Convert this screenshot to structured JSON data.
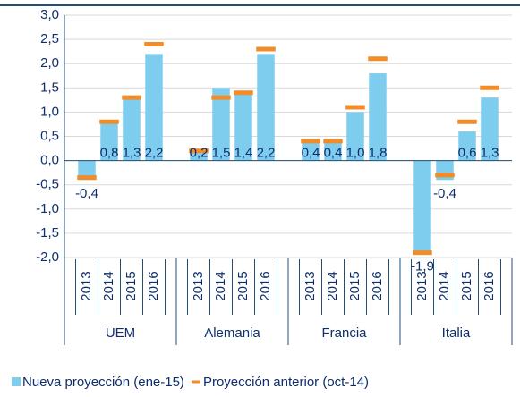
{
  "chart_data": {
    "type": "bar",
    "groups": [
      "UEM",
      "Alemania",
      "Francia",
      "Italia"
    ],
    "categories": [
      "2013",
      "2014",
      "2015",
      "2016",
      "2013",
      "2014",
      "2015",
      "2016",
      "2013",
      "2014",
      "2015",
      "2016",
      "2013",
      "2014",
      "2015",
      "2016"
    ],
    "series": [
      {
        "name": "Nueva proyección (ene-15)",
        "color": "#7fcdee",
        "values": [
          -0.4,
          0.8,
          1.3,
          2.2,
          0.2,
          1.5,
          1.4,
          2.2,
          0.4,
          0.4,
          1.0,
          1.8,
          -1.9,
          -0.4,
          0.6,
          1.3
        ],
        "value_labels": [
          "-0,4",
          "0,8",
          "1,3",
          "2,2",
          "0,2",
          "1,5",
          "1,4",
          "2,2",
          "0,4",
          "0,4",
          "1,0",
          "1,8",
          "-1,9",
          "-0,4",
          "0,6",
          "1,3"
        ]
      },
      {
        "name": "Proyección anterior (oct-14)",
        "color": "#f28c28",
        "values": [
          -0.35,
          0.8,
          1.3,
          2.4,
          0.2,
          1.3,
          1.4,
          2.3,
          0.4,
          0.4,
          1.1,
          2.1,
          -1.9,
          -0.3,
          0.8,
          1.5
        ]
      }
    ],
    "ylim": [
      -2.0,
      3.0
    ],
    "yticks": [
      {
        "value": -2.0,
        "label": "-2,0"
      },
      {
        "value": -1.5,
        "label": "-1,5"
      },
      {
        "value": -1.0,
        "label": "-1,0"
      },
      {
        "value": -0.5,
        "label": "-0,5"
      },
      {
        "value": 0.0,
        "label": "0,0"
      },
      {
        "value": 0.5,
        "label": "0,5"
      },
      {
        "value": 1.0,
        "label": "1,0"
      },
      {
        "value": 1.5,
        "label": "1,5"
      },
      {
        "value": 2.0,
        "label": "2,0"
      },
      {
        "value": 2.5,
        "label": "2,5"
      },
      {
        "value": 3.0,
        "label": "3,0"
      }
    ],
    "grid": true
  }
}
